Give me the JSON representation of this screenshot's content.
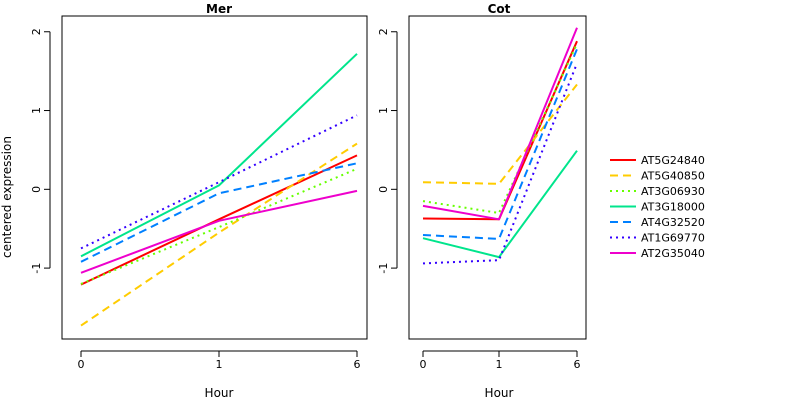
{
  "chart_data": {
    "type": "line",
    "ylabel": "centered expression",
    "ylim": [
      -1.9,
      2.2
    ],
    "yticks": [
      -1,
      0,
      1,
      2
    ],
    "xticks": [
      "0",
      "1",
      "6"
    ],
    "legend_position": "right",
    "series_styles": [
      {
        "name": "AT5G24840",
        "color": "#ff0000",
        "dash": "solid"
      },
      {
        "name": "AT5G40850",
        "color": "#ffcc00",
        "dash": "dashed"
      },
      {
        "name": "AT3G06930",
        "color": "#66ff00",
        "dash": "dotted"
      },
      {
        "name": "AT3G18000",
        "color": "#00e58c",
        "dash": "solid"
      },
      {
        "name": "AT4G32520",
        "color": "#0080ff",
        "dash": "dashed"
      },
      {
        "name": "AT1G69770",
        "color": "#3300ff",
        "dash": "dotted"
      },
      {
        "name": "AT2G35040",
        "color": "#ee00cc",
        "dash": "solid"
      }
    ],
    "panels": [
      {
        "title": "Mer",
        "xlabel": "Hour",
        "series": [
          {
            "name": "AT5G24840",
            "values": [
              -1.21,
              -0.38,
              0.43
            ]
          },
          {
            "name": "AT5G40850",
            "values": [
              -1.73,
              -0.55,
              0.58
            ]
          },
          {
            "name": "AT3G06930",
            "values": [
              -1.2,
              -0.48,
              0.26
            ]
          },
          {
            "name": "AT3G18000",
            "values": [
              -0.85,
              0.05,
              1.72
            ]
          },
          {
            "name": "AT4G32520",
            "values": [
              -0.92,
              -0.05,
              0.33
            ]
          },
          {
            "name": "AT1G69770",
            "values": [
              -0.75,
              0.09,
              0.94
            ]
          },
          {
            "name": "AT2G35040",
            "values": [
              -1.06,
              -0.4,
              -0.02
            ]
          }
        ]
      },
      {
        "title": "Cot",
        "xlabel": "Hour",
        "series": [
          {
            "name": "AT5G24840",
            "values": [
              -0.37,
              -0.38,
              1.88
            ]
          },
          {
            "name": "AT5G40850",
            "values": [
              0.09,
              0.07,
              1.33
            ]
          },
          {
            "name": "AT3G06930",
            "values": [
              -0.15,
              -0.3,
              1.85
            ]
          },
          {
            "name": "AT3G18000",
            "values": [
              -0.62,
              -0.86,
              0.49
            ]
          },
          {
            "name": "AT4G32520",
            "values": [
              -0.58,
              -0.63,
              1.78
            ]
          },
          {
            "name": "AT1G69770",
            "values": [
              -0.94,
              -0.9,
              1.6
            ]
          },
          {
            "name": "AT2G35040",
            "values": [
              -0.21,
              -0.38,
              2.05
            ]
          }
        ]
      }
    ]
  }
}
